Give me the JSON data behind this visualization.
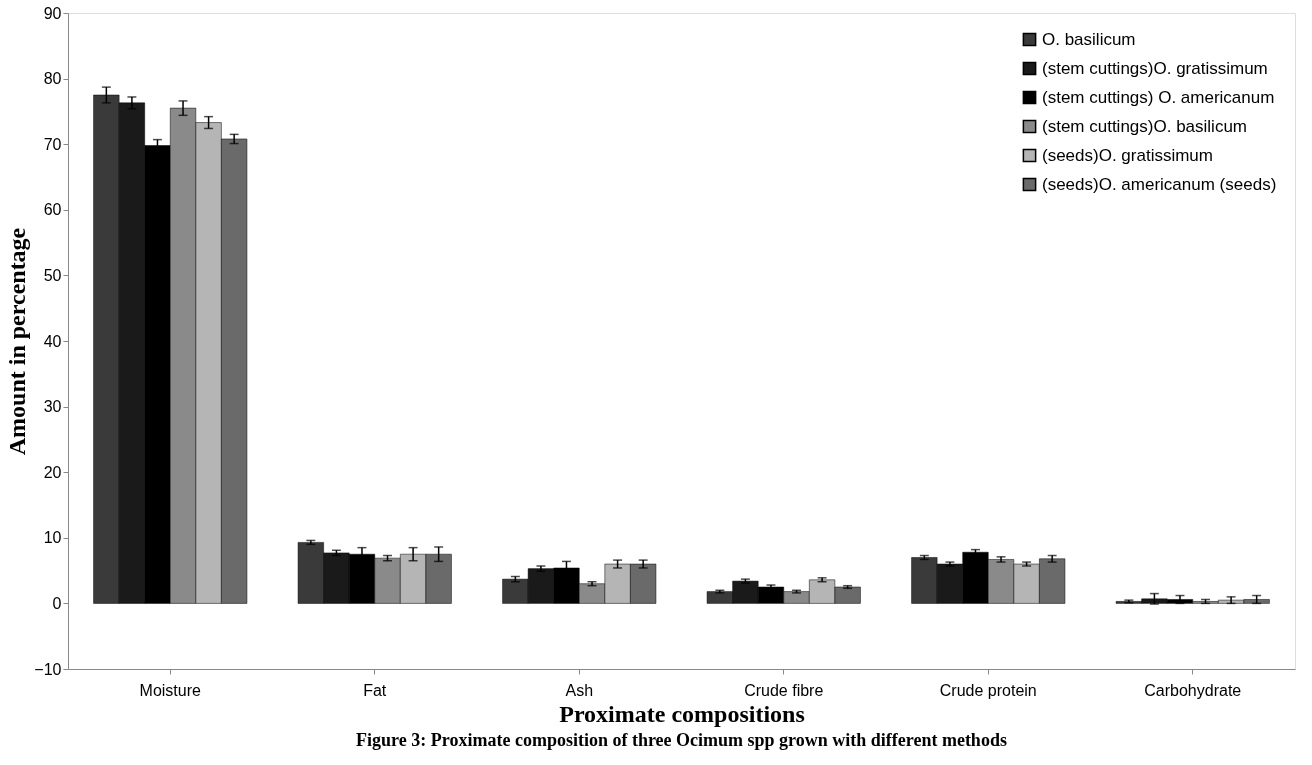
{
  "chart_data": {
    "type": "bar",
    "title": "Figure 3: Proximate composition of three Ocimum spp grown with different methods",
    "xlabel": "Proximate compositions",
    "ylabel": "Amount in percentage",
    "categories": [
      "Moisture",
      "Fat",
      "Ash",
      "Crude fibre",
      "Crude protein",
      "Carbohydrate"
    ],
    "series": [
      {
        "name": "O. basilicum",
        "color": "#3a3a3a",
        "values": [
          77.5,
          9.3,
          3.7,
          1.8,
          7.0,
          0.3
        ],
        "errors": [
          1.2,
          0.3,
          0.4,
          0.2,
          0.3,
          0.2
        ]
      },
      {
        "name": "(stem cuttings)O. gratissimum",
        "color": "#1a1a1a",
        "values": [
          76.3,
          7.7,
          5.3,
          3.4,
          6.0,
          0.7
        ],
        "errors": [
          0.9,
          0.4,
          0.4,
          0.3,
          0.3,
          0.8
        ]
      },
      {
        "name": "(stem cuttings) O. americanum",
        "color": "#000000",
        "values": [
          69.8,
          7.5,
          5.4,
          2.5,
          7.8,
          0.6
        ],
        "errors": [
          0.9,
          1.0,
          1.0,
          0.3,
          0.4,
          0.6
        ]
      },
      {
        "name": "(stem cuttings)O. basilicum",
        "color": "#8a8a8a",
        "values": [
          75.5,
          6.9,
          3.0,
          1.8,
          6.7,
          0.3
        ],
        "errors": [
          1.1,
          0.4,
          0.3,
          0.2,
          0.4,
          0.3
        ]
      },
      {
        "name": "(seeds)O. gratissimum",
        "color": "#b5b5b5",
        "values": [
          73.3,
          7.5,
          6.0,
          3.6,
          6.0,
          0.5
        ],
        "errors": [
          0.9,
          1.0,
          0.6,
          0.3,
          0.3,
          0.5
        ]
      },
      {
        "name": "(seeds)O. americanum (seeds)",
        "color": "#6a6a6a",
        "values": [
          70.8,
          7.5,
          6.0,
          2.5,
          6.8,
          0.6
        ],
        "errors": [
          0.7,
          1.1,
          0.6,
          0.2,
          0.5,
          0.6
        ]
      }
    ],
    "ylim": [
      -10,
      90
    ],
    "yticks": [
      -10,
      0,
      10,
      20,
      30,
      40,
      50,
      60,
      70,
      80,
      90
    ],
    "grid": false,
    "legend": "top right"
  }
}
